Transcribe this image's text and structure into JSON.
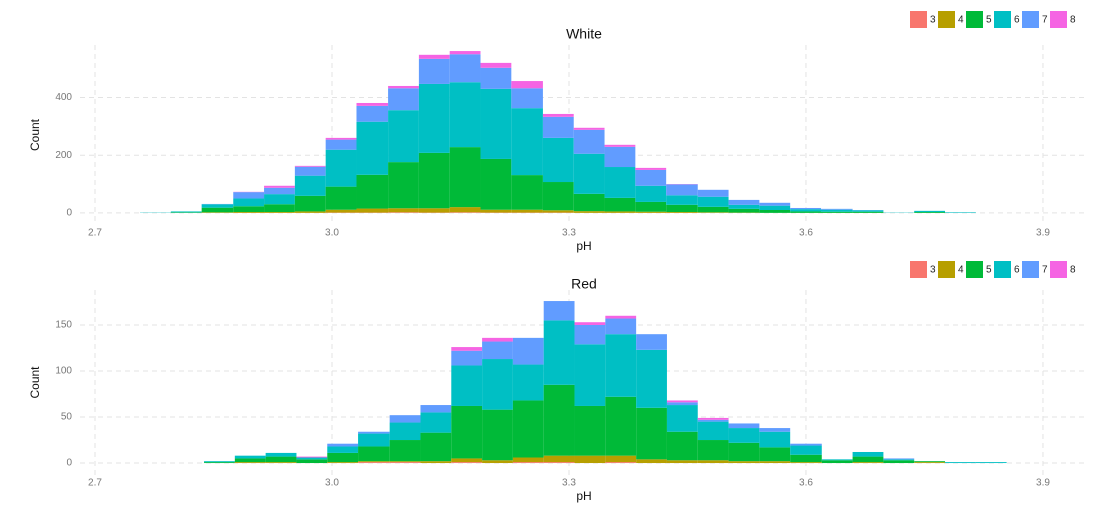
{
  "chart_data": [
    {
      "type": "histogram",
      "title": "White",
      "x_label": "pH",
      "y_label": "Count",
      "bins": [
        2.757,
        2.796,
        2.835,
        2.875,
        2.914,
        2.953,
        2.992,
        3.031,
        3.071,
        3.11,
        3.149,
        3.188,
        3.227,
        3.267,
        3.306,
        3.345,
        3.384,
        3.423,
        3.463,
        3.502,
        3.541,
        3.58,
        3.619,
        3.659,
        3.698,
        3.737,
        3.776,
        3.815
      ],
      "series": [
        {
          "name": "3",
          "color": "#F8766D",
          "values": [
            0,
            0,
            0,
            0,
            0,
            0,
            1,
            1,
            2,
            1,
            2,
            1,
            1,
            1,
            0,
            0,
            0,
            0,
            0,
            0,
            0,
            0,
            0,
            0,
            0,
            0,
            0
          ]
        },
        {
          "name": "4",
          "color": "#B79F00",
          "values": [
            0,
            0,
            2,
            3,
            3,
            5,
            10,
            14,
            14,
            15,
            18,
            10,
            10,
            8,
            6,
            5,
            4,
            3,
            2,
            1,
            0,
            0,
            0,
            0,
            0,
            0,
            0
          ]
        },
        {
          "name": "5",
          "color": "#00BA38",
          "values": [
            0,
            2,
            16,
            20,
            27,
            54,
            80,
            117,
            160,
            192,
            208,
            176,
            120,
            98,
            60,
            47,
            34,
            25,
            19,
            13,
            10,
            5,
            4,
            4,
            0,
            3,
            0
          ]
        },
        {
          "name": "6",
          "color": "#00BFC4",
          "values": [
            1,
            3,
            12,
            27,
            35,
            70,
            128,
            184,
            180,
            239,
            225,
            243,
            232,
            153,
            139,
            107,
            56,
            33,
            35,
            14,
            15,
            8,
            7,
            5,
            1,
            4,
            2
          ]
        },
        {
          "name": "7",
          "color": "#619CFF",
          "values": [
            0,
            0,
            1,
            22,
            22,
            31,
            35,
            55,
            76,
            87,
            97,
            73,
            69,
            73,
            83,
            70,
            55,
            38,
            24,
            17,
            10,
            4,
            3,
            1,
            0,
            0,
            0
          ]
        },
        {
          "name": "8",
          "color": "#F564E3",
          "values": [
            0,
            0,
            0,
            1,
            7,
            3,
            6,
            10,
            8,
            14,
            11,
            17,
            25,
            10,
            7,
            7,
            7,
            1,
            0,
            0,
            0,
            0,
            0,
            0,
            0,
            0,
            0
          ]
        }
      ],
      "xlim": [
        2.681,
        3.957
      ],
      "xticks": [
        2.7,
        {
          "value": 3,
          "label": "3.0"
        },
        3.3,
        3.6,
        3.9
      ],
      "ylim": [
        -42,
        582
      ],
      "yticks": [
        0,
        200,
        400
      ],
      "grid": true,
      "legend": "top-right"
    },
    {
      "type": "histogram",
      "title": "Red",
      "x_label": "pH",
      "y_label": "Count",
      "bins": [
        2.838,
        2.877,
        2.916,
        2.955,
        2.994,
        3.033,
        3.073,
        3.112,
        3.151,
        3.19,
        3.229,
        3.268,
        3.307,
        3.346,
        3.385,
        3.424,
        3.463,
        3.502,
        3.541,
        3.58,
        3.62,
        3.659,
        3.698,
        3.737,
        3.776,
        3.815,
        3.854
      ],
      "series": [
        {
          "name": "3",
          "color": "#F8766D",
          "values": [
            0,
            0,
            0,
            0,
            0,
            1,
            1,
            0,
            1,
            0,
            1,
            1,
            0,
            1,
            0,
            0,
            0,
            0,
            0,
            0,
            0,
            0,
            0,
            0,
            0,
            0
          ]
        },
        {
          "name": "4",
          "color": "#B79F00",
          "values": [
            0,
            1,
            1,
            0,
            1,
            1,
            1,
            2,
            4,
            3,
            5,
            7,
            8,
            7,
            4,
            3,
            3,
            2,
            2,
            1,
            0,
            1,
            0,
            1,
            0,
            0
          ]
        },
        {
          "name": "5",
          "color": "#00BA38",
          "values": [
            1,
            4,
            6,
            4,
            10,
            16,
            23,
            31,
            57,
            55,
            62,
            77,
            54,
            64,
            56,
            31,
            22,
            20,
            15,
            8,
            3,
            6,
            3,
            1,
            0,
            0
          ]
        },
        {
          "name": "6",
          "color": "#00BFC4",
          "values": [
            1,
            3,
            4,
            2,
            7,
            14,
            19,
            22,
            44,
            55,
            39,
            70,
            67,
            68,
            63,
            29,
            20,
            16,
            17,
            10,
            1,
            5,
            1,
            0,
            1,
            1
          ]
        },
        {
          "name": "7",
          "color": "#619CFF",
          "values": [
            0,
            0,
            0,
            0,
            3,
            2,
            8,
            8,
            16,
            19,
            29,
            21,
            21,
            17,
            17,
            3,
            2,
            5,
            4,
            2,
            0,
            0,
            1,
            0,
            0,
            0
          ]
        },
        {
          "name": "8",
          "color": "#F564E3",
          "values": [
            0,
            0,
            0,
            1,
            0,
            0,
            0,
            0,
            4,
            4,
            0,
            0,
            3,
            3,
            0,
            2,
            2,
            0,
            0,
            0,
            0,
            0,
            0,
            0,
            0,
            0
          ]
        }
      ],
      "xlim": [
        2.681,
        3.957
      ],
      "xticks": [
        2.7,
        {
          "value": 3,
          "label": "3.0"
        },
        3.3,
        3.6,
        3.9
      ],
      "ylim": [
        -13,
        188
      ],
      "yticks": [
        0,
        50,
        100,
        150
      ],
      "grid": true,
      "legend": "top-right"
    }
  ]
}
